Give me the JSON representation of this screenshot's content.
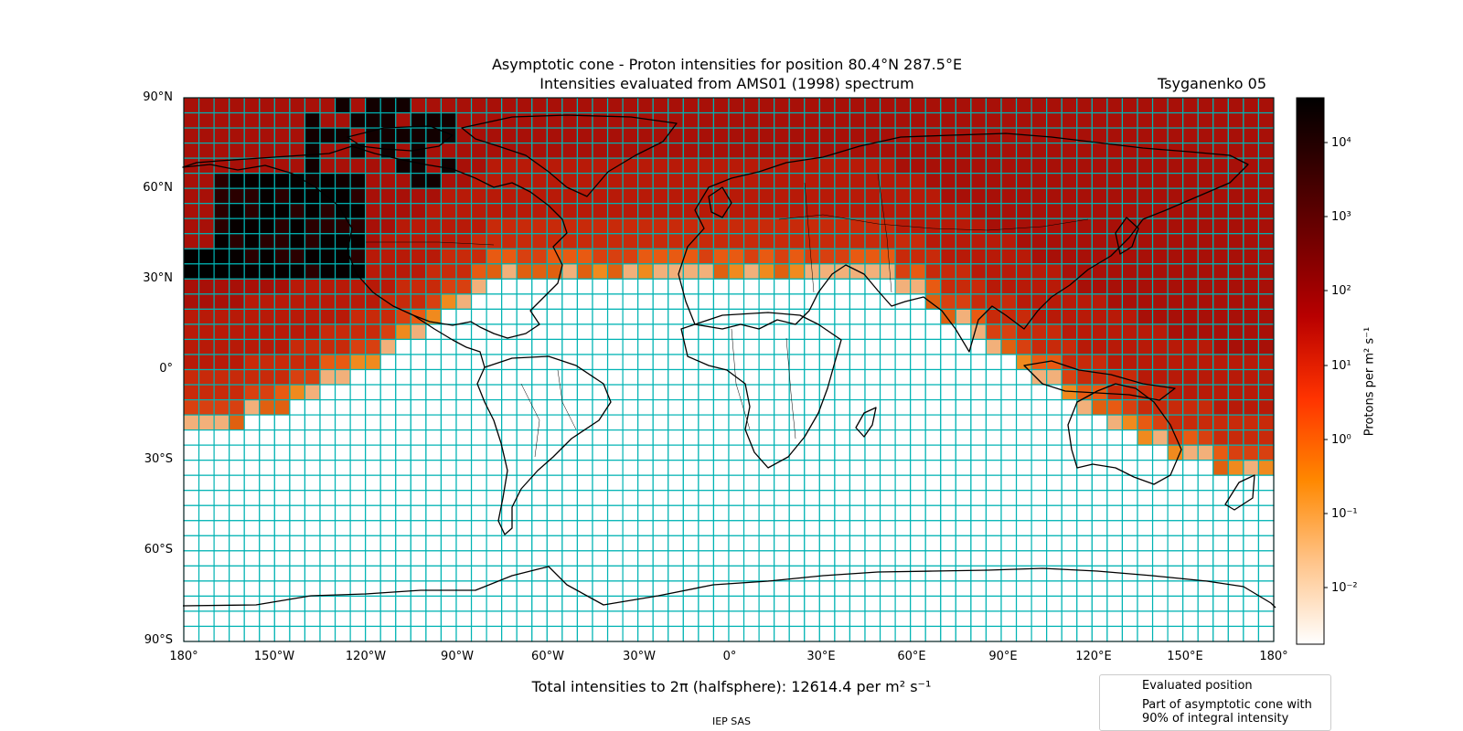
{
  "title": {
    "line1": "Asymptotic cone - Proton intensities for position 80.4°N 287.5°E",
    "line2": "Intensities evaluated from AMS01 (1998) spectrum"
  },
  "model_label": "Tsyganenko 05",
  "axes": {
    "lat_ticks": [
      "90°N",
      "60°N",
      "30°N",
      "0°",
      "30°S",
      "60°S",
      "90°S"
    ],
    "lon_ticks": [
      "180°",
      "150°W",
      "120°W",
      "90°W",
      "60°W",
      "30°W",
      "0°",
      "30°E",
      "60°E",
      "90°E",
      "120°E",
      "150°E",
      "180°"
    ]
  },
  "colorbar": {
    "label": "Protons per m² s⁻¹",
    "scale": "log",
    "ticks": [
      "10⁴",
      "10³",
      "10²",
      "10¹",
      "10⁰",
      "10⁻¹",
      "10⁻²"
    ],
    "colormap": "gist_heat_r"
  },
  "total_text": "Total intensities to 2π (halfsphere): 12614.4 per m² s⁻¹",
  "legend": {
    "evaluated_position": "Evaluated position",
    "cone_line1": "Part of asymptotic cone with",
    "cone_line2": "90% of integral intensity"
  },
  "footer": "IEP SAS",
  "colors": {
    "grid_line": "#00b3b3",
    "marker": "#00f0ff",
    "cone_outline": "#33ff33",
    "empty_cell": "#ffffff"
  }
}
